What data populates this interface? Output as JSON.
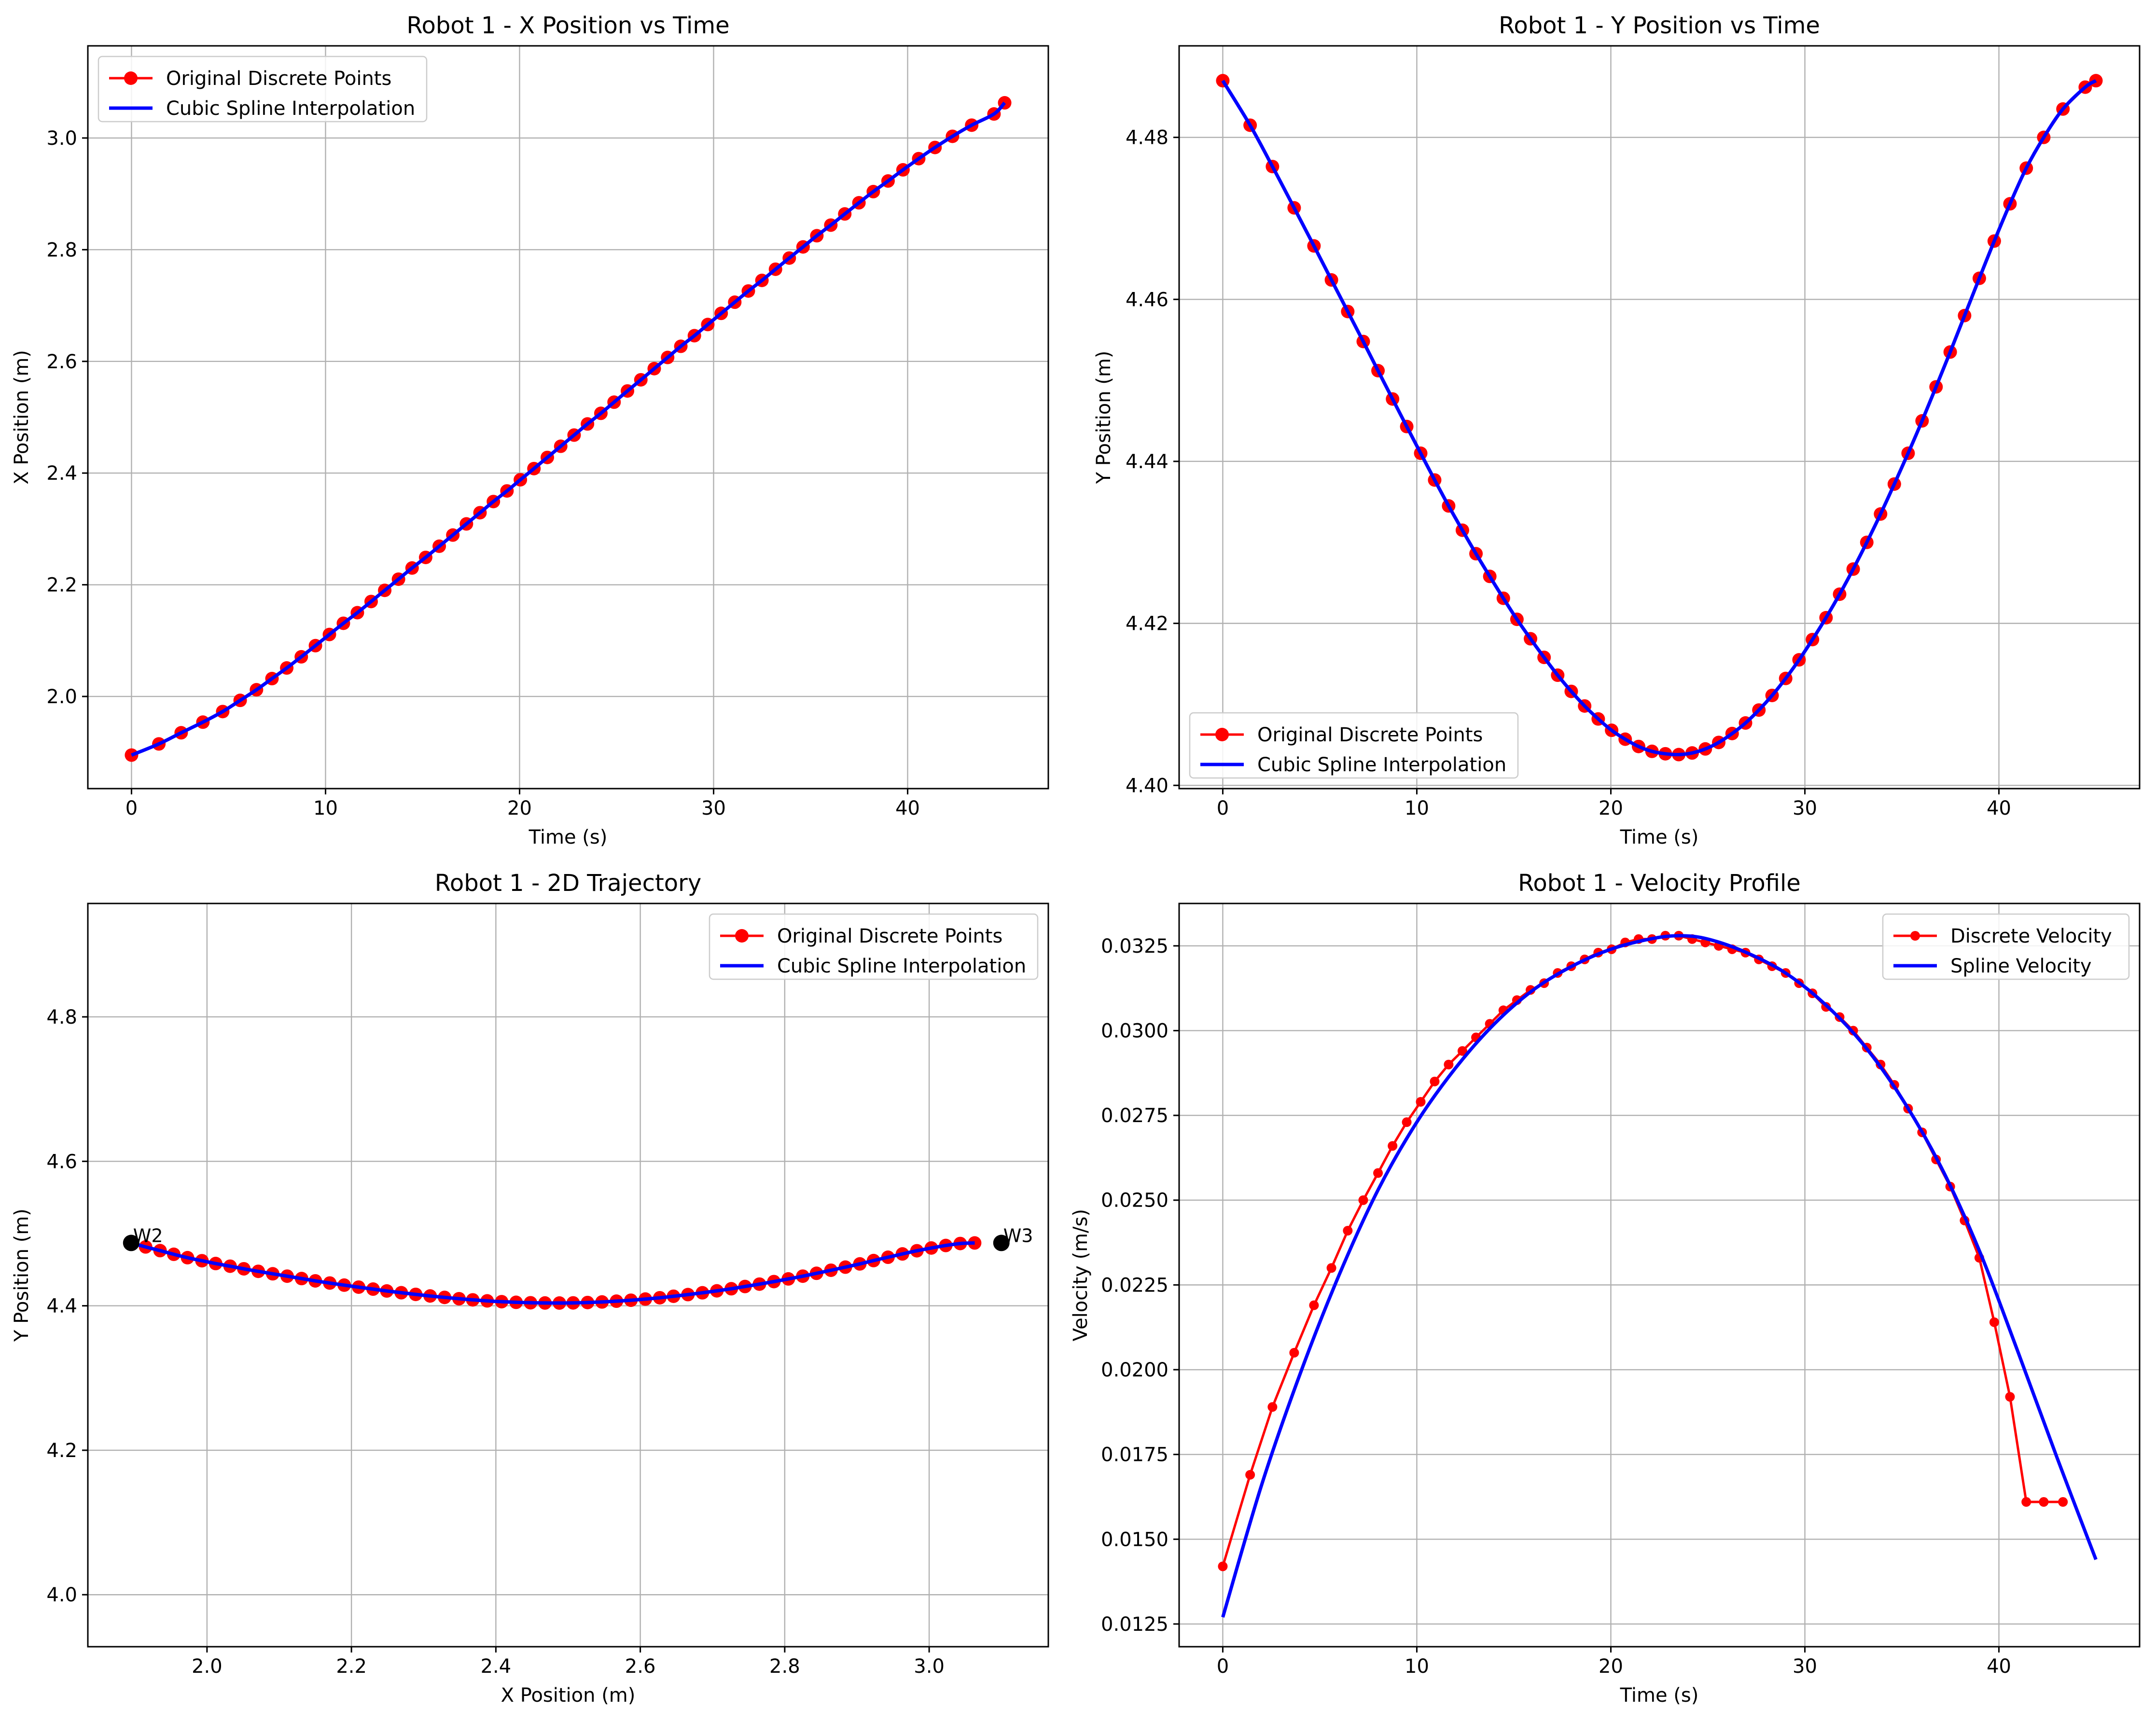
{
  "chart_data": [
    {
      "type": "line",
      "title": "Robot 1 - X Position vs Time",
      "xlabel": "Time (s)",
      "ylabel": "X Position (m)",
      "xlim": [
        -2.25,
        47.25
      ],
      "ylim": [
        1.835,
        3.165
      ],
      "xticks": [
        0,
        10,
        20,
        30,
        40
      ],
      "xtick_labels": [
        "0",
        "10",
        "20",
        "30",
        "40"
      ],
      "yticks": [
        2.0,
        2.2,
        2.4,
        2.6,
        2.8,
        3.0
      ],
      "ytick_labels": [
        "2.0",
        "2.2",
        "2.4",
        "2.6",
        "2.8",
        "3.0"
      ],
      "grid": true,
      "legend_position": "upper-left",
      "series": [
        {
          "name": "Original Discrete Points",
          "color": "#ff0000",
          "style": "line-markers",
          "x": [
            0,
            1.41,
            2.56,
            3.68,
            4.7,
            5.6,
            6.44,
            7.24,
            8.0,
            8.75,
            9.48,
            10.2,
            10.92,
            11.64,
            12.35,
            13.05,
            13.76,
            14.46,
            15.16,
            15.86,
            16.56,
            17.26,
            17.96,
            18.65,
            19.35,
            20.04,
            20.74,
            21.43,
            22.12,
            22.81,
            23.5,
            24.19,
            24.87,
            25.56,
            26.25,
            26.94,
            27.63,
            28.31,
            29.01,
            29.7,
            30.39,
            31.09,
            31.79,
            32.49,
            33.19,
            33.9,
            34.61,
            35.32,
            36.04,
            36.76,
            37.49,
            38.23,
            38.99,
            39.76,
            40.57,
            41.41,
            42.31,
            43.3,
            44.45,
            45.0
          ],
          "y": [
            1.895,
            1.915,
            1.935,
            1.954,
            1.973,
            1.993,
            2.012,
            2.032,
            2.051,
            2.071,
            2.091,
            2.111,
            2.131,
            2.15,
            2.17,
            2.19,
            2.21,
            2.23,
            2.249,
            2.269,
            2.289,
            2.309,
            2.329,
            2.349,
            2.368,
            2.388,
            2.408,
            2.428,
            2.448,
            2.468,
            2.488,
            2.507,
            2.527,
            2.547,
            2.567,
            2.587,
            2.607,
            2.627,
            2.646,
            2.666,
            2.686,
            2.706,
            2.726,
            2.745,
            2.765,
            2.785,
            2.805,
            2.825,
            2.844,
            2.864,
            2.884,
            2.904,
            2.923,
            2.943,
            2.963,
            2.983,
            3.003,
            3.023,
            3.043,
            3.063
          ]
        },
        {
          "name": "Cubic Spline Interpolation",
          "color": "#0000ff",
          "style": "line",
          "x": [
            0,
            45
          ],
          "y": [
            1.895,
            3.105
          ],
          "curve": "smooth"
        }
      ]
    },
    {
      "type": "line",
      "title": "Robot 1 - Y Position vs Time",
      "xlabel": "Time (s)",
      "ylabel": "Y Position (m)",
      "xlim": [
        -2.25,
        47.25
      ],
      "ylim": [
        4.3996,
        4.4913
      ],
      "xticks": [
        0,
        10,
        20,
        30,
        40
      ],
      "xtick_labels": [
        "0",
        "10",
        "20",
        "30",
        "40"
      ],
      "yticks": [
        4.4,
        4.42,
        4.44,
        4.46,
        4.48
      ],
      "ytick_labels": [
        "4.40",
        "4.42",
        "4.44",
        "4.46",
        "4.48"
      ],
      "grid": true,
      "legend_position": "lower-left",
      "series": [
        {
          "name": "Original Discrete Points",
          "color": "#ff0000",
          "style": "line-markers",
          "x": [
            0,
            1.41,
            2.56,
            3.68,
            4.7,
            5.6,
            6.44,
            7.24,
            8.0,
            8.75,
            9.48,
            10.2,
            10.92,
            11.64,
            12.35,
            13.05,
            13.76,
            14.46,
            15.16,
            15.86,
            16.56,
            17.26,
            17.96,
            18.65,
            19.35,
            20.04,
            20.74,
            21.43,
            22.12,
            22.81,
            23.5,
            24.19,
            24.87,
            25.56,
            26.25,
            26.94,
            27.63,
            28.31,
            29.01,
            29.7,
            30.39,
            31.09,
            31.79,
            32.49,
            33.19,
            33.9,
            34.61,
            35.32,
            36.04,
            36.76,
            37.49,
            38.23,
            38.99,
            39.76,
            40.57,
            41.41,
            42.31,
            43.3,
            44.45,
            45.0
          ],
          "y": [
            4.487,
            4.4815,
            4.4764,
            4.4713,
            4.4666,
            4.4624,
            4.4585,
            4.4548,
            4.4512,
            4.4477,
            4.4443,
            4.441,
            4.4377,
            4.4345,
            4.4315,
            4.4286,
            4.4258,
            4.4231,
            4.4205,
            4.4181,
            4.4158,
            4.4136,
            4.4116,
            4.4098,
            4.4082,
            4.4068,
            4.4057,
            4.4048,
            4.4042,
            4.4039,
            4.4038,
            4.404,
            4.4045,
            4.4053,
            4.4064,
            4.4077,
            4.4093,
            4.4111,
            4.4132,
            4.4155,
            4.418,
            4.4207,
            4.4236,
            4.4267,
            4.43,
            4.4335,
            4.4372,
            4.441,
            4.445,
            4.4492,
            4.4535,
            4.458,
            4.4626,
            4.4672,
            4.4718,
            4.4762,
            4.48,
            4.4835,
            4.4862,
            4.487
          ]
        },
        {
          "name": "Cubic Spline Interpolation",
          "color": "#0000ff",
          "style": "line",
          "x": [
            0,
            22.7,
            45
          ],
          "y": [
            4.487,
            4.4037,
            4.487
          ],
          "curve": "smooth"
        }
      ]
    },
    {
      "type": "line",
      "title": "Robot 1 - 2D Trajectory",
      "xlabel": "X Position (m)",
      "ylabel": "Y Position (m)",
      "xlim": [
        1.835,
        3.165
      ],
      "ylim": [
        3.928,
        4.957
      ],
      "xticks": [
        2.0,
        2.2,
        2.4,
        2.6,
        2.8,
        3.0
      ],
      "xtick_labels": [
        "2.0",
        "2.2",
        "2.4",
        "2.6",
        "2.8",
        "3.0"
      ],
      "yticks": [
        4.0,
        4.2,
        4.4,
        4.6,
        4.8
      ],
      "ytick_labels": [
        "4.0",
        "4.2",
        "4.4",
        "4.6",
        "4.8"
      ],
      "grid": true,
      "legend_position": "upper-right",
      "waypoints": [
        {
          "label": "W2",
          "x": 1.895,
          "y": 4.487
        },
        {
          "label": "W3",
          "x": 3.1,
          "y": 4.487
        }
      ],
      "series": [
        {
          "name": "Original Discrete Points",
          "color": "#ff0000",
          "style": "line-markers",
          "x": [
            1.895,
            1.915,
            1.935,
            1.954,
            1.973,
            1.993,
            2.012,
            2.032,
            2.051,
            2.071,
            2.091,
            2.111,
            2.131,
            2.15,
            2.17,
            2.19,
            2.21,
            2.23,
            2.249,
            2.269,
            2.289,
            2.309,
            2.329,
            2.349,
            2.368,
            2.388,
            2.408,
            2.428,
            2.448,
            2.468,
            2.488,
            2.507,
            2.527,
            2.547,
            2.567,
            2.587,
            2.607,
            2.627,
            2.646,
            2.666,
            2.686,
            2.706,
            2.726,
            2.745,
            2.765,
            2.785,
            2.805,
            2.825,
            2.844,
            2.864,
            2.884,
            2.904,
            2.923,
            2.943,
            2.963,
            2.983,
            3.003,
            3.023,
            3.043,
            3.063
          ],
          "y": [
            4.487,
            4.4815,
            4.4764,
            4.4713,
            4.4666,
            4.4624,
            4.4585,
            4.4548,
            4.4512,
            4.4477,
            4.4443,
            4.441,
            4.4377,
            4.4345,
            4.4315,
            4.4286,
            4.4258,
            4.4231,
            4.4205,
            4.4181,
            4.4158,
            4.4136,
            4.4116,
            4.4098,
            4.4082,
            4.4068,
            4.4057,
            4.4048,
            4.4042,
            4.4039,
            4.4038,
            4.404,
            4.4045,
            4.4053,
            4.4064,
            4.4077,
            4.4093,
            4.4111,
            4.4132,
            4.4155,
            4.418,
            4.4207,
            4.4236,
            4.4267,
            4.43,
            4.4335,
            4.4372,
            4.441,
            4.445,
            4.4492,
            4.4535,
            4.458,
            4.4626,
            4.4672,
            4.4718,
            4.4762,
            4.48,
            4.4835,
            4.4862,
            4.487
          ]
        },
        {
          "name": "Cubic Spline Interpolation",
          "color": "#0000ff",
          "style": "line",
          "x": [
            1.895,
            2.5,
            3.1
          ],
          "y": [
            4.487,
            4.4037,
            4.487
          ],
          "curve": "smooth"
        }
      ]
    },
    {
      "type": "line",
      "title": "Robot 1 - Velocity Profile",
      "xlabel": "Time (s)",
      "ylabel": "Velocity (m/s)",
      "xlim": [
        -2.25,
        47.25
      ],
      "ylim": [
        0.01183,
        0.03375
      ],
      "xticks": [
        0,
        10,
        20,
        30,
        40
      ],
      "xtick_labels": [
        "0",
        "10",
        "20",
        "30",
        "40"
      ],
      "yticks": [
        0.0125,
        0.015,
        0.0175,
        0.02,
        0.0225,
        0.025,
        0.0275,
        0.03,
        0.0325
      ],
      "ytick_labels": [
        "0.0125",
        "0.0150",
        "0.0175",
        "0.0200",
        "0.0225",
        "0.0250",
        "0.0275",
        "0.0300",
        "0.0325"
      ],
      "grid": true,
      "legend_position": "upper-right",
      "series": [
        {
          "name": "Discrete Velocity",
          "color": "#ff0000",
          "style": "line-small-markers",
          "x": [
            0,
            1.41,
            2.56,
            3.68,
            4.7,
            5.6,
            6.44,
            7.24,
            8.0,
            8.75,
            9.48,
            10.2,
            10.92,
            11.64,
            12.35,
            13.05,
            13.76,
            14.46,
            15.16,
            15.86,
            16.56,
            17.26,
            17.96,
            18.65,
            19.35,
            20.04,
            20.74,
            21.43,
            22.12,
            22.81,
            23.5,
            24.19,
            24.87,
            25.56,
            26.25,
            26.94,
            27.63,
            28.31,
            29.01,
            29.7,
            30.39,
            31.09,
            31.79,
            32.49,
            33.19,
            33.9,
            34.61,
            35.32,
            36.04,
            36.76,
            37.49,
            38.23,
            38.99,
            39.76,
            40.57,
            41.41,
            42.31,
            43.3
          ],
          "y": [
            0.0142,
            0.0169,
            0.0189,
            0.0205,
            0.0219,
            0.023,
            0.0241,
            0.025,
            0.0258,
            0.0266,
            0.0273,
            0.0279,
            0.0285,
            0.029,
            0.0294,
            0.0298,
            0.0302,
            0.0306,
            0.0309,
            0.0312,
            0.0314,
            0.0317,
            0.0319,
            0.0321,
            0.0323,
            0.0324,
            0.0326,
            0.0327,
            0.0327,
            0.0328,
            0.0328,
            0.0327,
            0.0326,
            0.0325,
            0.0324,
            0.0323,
            0.0321,
            0.0319,
            0.0317,
            0.0314,
            0.0311,
            0.0307,
            0.0304,
            0.03,
            0.0295,
            0.029,
            0.0284,
            0.0277,
            0.027,
            0.0262,
            0.0254,
            0.0244,
            0.0233,
            0.0214,
            0.0192,
            0.0161,
            0.0161,
            0.0161
          ]
        },
        {
          "name": "Spline Velocity",
          "color": "#0000ff",
          "style": "line",
          "x": [
            0,
            2,
            4,
            6,
            8,
            10,
            12,
            14,
            16,
            18,
            20,
            22,
            23.5,
            25,
            27,
            29,
            31,
            33,
            35,
            37,
            39,
            41,
            43,
            45
          ],
          "y": [
            0.0127,
            0.0166,
            0.0199,
            0.0228,
            0.0253,
            0.0273,
            0.0289,
            0.0302,
            0.0312,
            0.0319,
            0.0324,
            0.0327,
            0.0328,
            0.0327,
            0.0323,
            0.0317,
            0.0308,
            0.0296,
            0.028,
            0.026,
            0.0235,
            0.0205,
            0.0174,
            0.0144
          ]
        }
      ]
    }
  ]
}
